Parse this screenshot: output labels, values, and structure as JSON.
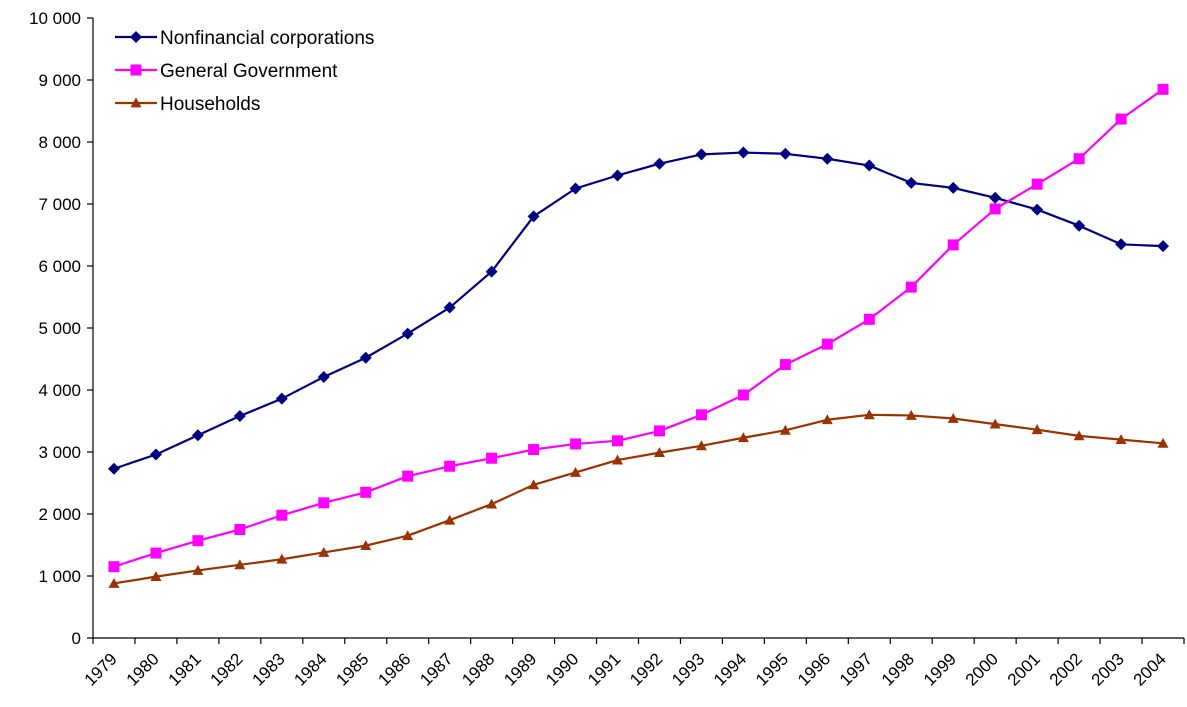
{
  "chart_data": {
    "type": "line",
    "title": "",
    "xlabel": "",
    "ylabel": "",
    "ylim": [
      0,
      10000
    ],
    "yticks": [
      0,
      1000,
      2000,
      3000,
      4000,
      5000,
      6000,
      7000,
      8000,
      9000,
      10000
    ],
    "ytick_labels": [
      "0",
      "1 000",
      "2 000",
      "3 000",
      "4 000",
      "5 000",
      "6 000",
      "7 000",
      "8 000",
      "9 000",
      "10 000"
    ],
    "categories": [
      "1979",
      "1980",
      "1981",
      "1982",
      "1983",
      "1984",
      "1985",
      "1986",
      "1987",
      "1988",
      "1989",
      "1990",
      "1991",
      "1992",
      "1993",
      "1994",
      "1995",
      "1996",
      "1997",
      "1998",
      "1999",
      "2000",
      "2001",
      "2002",
      "2003",
      "2004"
    ],
    "grid": false,
    "legend_position": "top-left",
    "series": [
      {
        "name": "Nonfinancial corporations",
        "color": "#000080",
        "marker": "diamond",
        "values": [
          2730,
          2960,
          3270,
          3580,
          3860,
          4210,
          4520,
          4910,
          5330,
          5910,
          6800,
          7250,
          7460,
          7650,
          7800,
          7830,
          7810,
          7730,
          7620,
          7340,
          7260,
          7100,
          6910,
          6650,
          6350,
          6320
        ]
      },
      {
        "name": "General Government",
        "color": "#FF00FF",
        "marker": "square",
        "values": [
          1150,
          1370,
          1570,
          1750,
          1980,
          2180,
          2350,
          2610,
          2770,
          2900,
          3040,
          3130,
          3180,
          3340,
          3600,
          3920,
          4410,
          4740,
          5140,
          5660,
          6340,
          6920,
          7320,
          7730,
          8370,
          8850
        ]
      },
      {
        "name": "Households",
        "color": "#993300",
        "marker": "triangle",
        "values": [
          880,
          990,
          1090,
          1180,
          1270,
          1380,
          1490,
          1650,
          1900,
          2160,
          2470,
          2670,
          2870,
          2990,
          3100,
          3230,
          3350,
          3520,
          3600,
          3590,
          3540,
          3450,
          3360,
          3260,
          3200,
          3140
        ]
      }
    ]
  }
}
